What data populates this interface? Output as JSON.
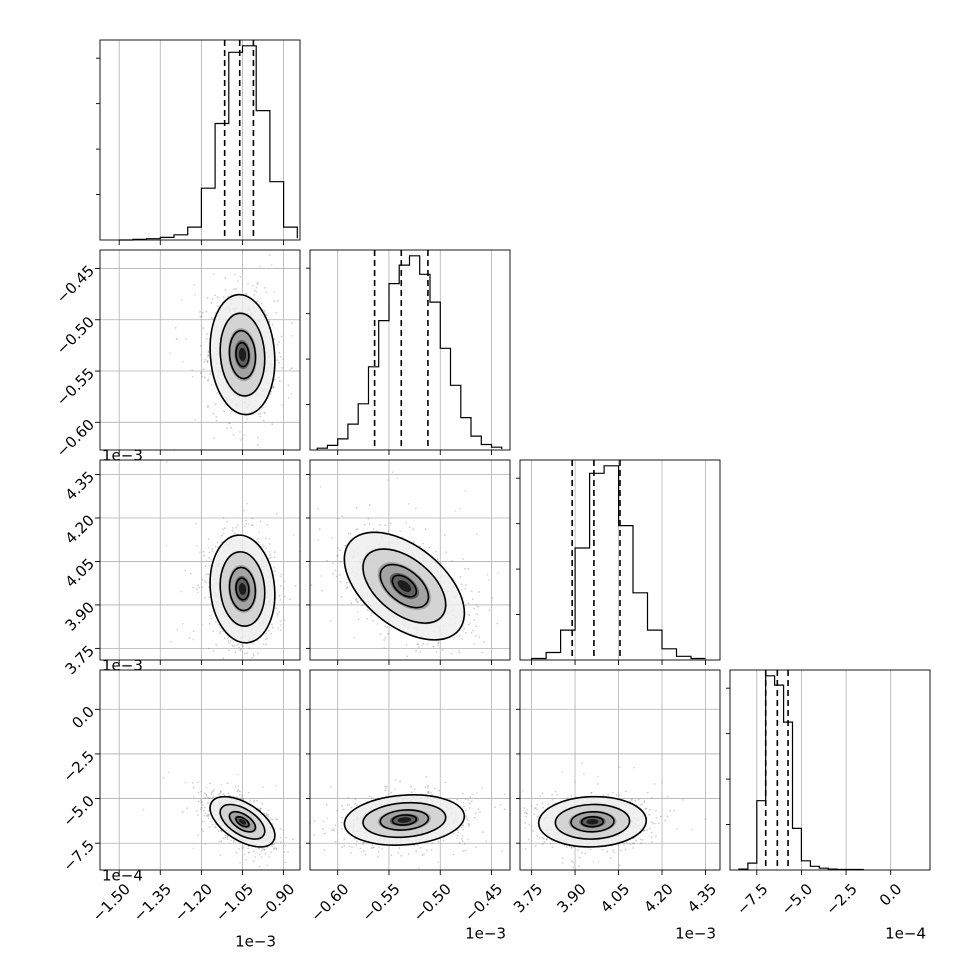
{
  "chart_data": {
    "type": "corner",
    "parameters": [
      {
        "ticks": [
          -1.5,
          -1.35,
          -1.2,
          -1.05,
          -0.9
        ],
        "tick_labels": [
          "−1.50",
          "−1.35",
          "−1.20",
          "−1.05",
          "−0.90"
        ],
        "offset": "1e−3",
        "lim": [
          -1.57,
          -0.84
        ]
      },
      {
        "ticks": [
          -0.6,
          -0.55,
          -0.5,
          -0.45
        ],
        "tick_labels": [
          "−0.60",
          "−0.55",
          "−0.50",
          "−0.45"
        ],
        "offset": "1e−3",
        "lim": [
          -0.627,
          -0.432
        ]
      },
      {
        "ticks": [
          3.75,
          3.9,
          4.05,
          4.2,
          4.35
        ],
        "tick_labels": [
          "3.75",
          "3.90",
          "4.05",
          "4.20",
          "4.35"
        ],
        "offset": "1e−3",
        "lim": [
          3.71,
          4.4
        ]
      },
      {
        "ticks": [
          -7.5,
          -5.0,
          -2.5,
          0.0
        ],
        "tick_labels": [
          "−7.5",
          "−5.0",
          "−2.5",
          "0.0"
        ],
        "offset": "1e−4",
        "lim": [
          -9.0,
          2.2
        ]
      }
    ],
    "marginals": [
      {
        "bins_x": [
          -1.5,
          -1.45,
          -1.4,
          -1.35,
          -1.3,
          -1.25,
          -1.2,
          -1.15,
          -1.1,
          -1.05,
          -1.0,
          -0.95,
          -0.9,
          -0.85
        ],
        "counts": [
          0,
          1,
          2,
          4,
          8,
          20,
          80,
          180,
          290,
          300,
          200,
          90,
          20,
          3
        ],
        "quantiles": [
          -1.115,
          -1.06,
          -1.01
        ]
      },
      {
        "bins_x": [
          -0.62,
          -0.61,
          -0.6,
          -0.59,
          -0.58,
          -0.57,
          -0.56,
          -0.55,
          -0.54,
          -0.53,
          -0.52,
          -0.51,
          -0.5,
          -0.49,
          -0.48,
          -0.47,
          -0.46,
          -0.45,
          -0.44
        ],
        "counts": [
          2,
          5,
          12,
          28,
          50,
          90,
          140,
          180,
          200,
          210,
          190,
          160,
          110,
          70,
          35,
          15,
          6,
          3,
          1
        ],
        "quantiles": [
          -0.564,
          -0.538,
          -0.512
        ]
      },
      {
        "bins_x": [
          3.75,
          3.8,
          3.85,
          3.9,
          3.95,
          4.0,
          4.05,
          4.1,
          4.15,
          4.2,
          4.25,
          4.3,
          4.35
        ],
        "counts": [
          2,
          10,
          40,
          150,
          250,
          260,
          180,
          90,
          40,
          15,
          5,
          2
        ],
        "quantiles": [
          3.89,
          3.965,
          4.055
        ]
      },
      {
        "bins_x": [
          -8.5,
          -8.0,
          -7.5,
          -7.0,
          -6.5,
          -6.0,
          -5.5,
          -5.0,
          -4.5,
          -4.0,
          -3.5,
          -3.0,
          -2.5,
          -2.0,
          -1.5
        ],
        "counts": [
          2,
          15,
          150,
          420,
          400,
          320,
          90,
          20,
          8,
          4,
          2,
          1,
          1,
          1
        ],
        "quantiles": [
          -7.0,
          -6.35,
          -5.75
        ]
      }
    ],
    "pairs": [
      {
        "row": 1,
        "col": 0,
        "center": [
          -1.05,
          -0.534
        ],
        "rho": -0.1
      },
      {
        "row": 2,
        "col": 0,
        "center": [
          -1.05,
          3.955
        ],
        "rho": -0.1
      },
      {
        "row": 2,
        "col": 1,
        "center": [
          -0.535,
          3.965
        ],
        "rho": -0.5
      },
      {
        "row": 3,
        "col": 0,
        "center": [
          -1.05,
          -6.3
        ],
        "rho": -0.55
      },
      {
        "row": 3,
        "col": 1,
        "center": [
          -0.535,
          -6.2
        ],
        "rho": 0.15
      },
      {
        "row": 3,
        "col": 2,
        "center": [
          3.96,
          -6.3
        ],
        "rho": 0.05
      }
    ],
    "grid": true,
    "title": "",
    "xlabel": "",
    "ylabel": ""
  }
}
